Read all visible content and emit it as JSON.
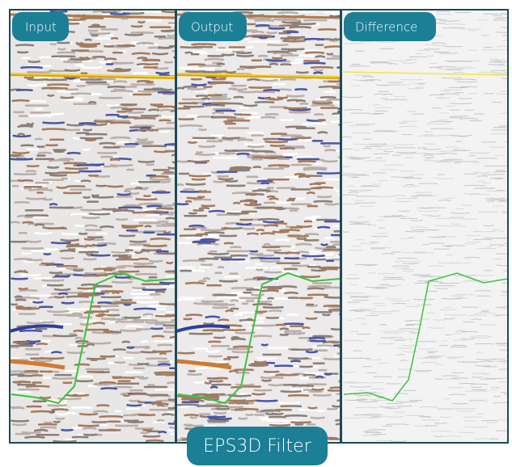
{
  "panels": [
    {
      "label": "Input"
    },
    {
      "label": "Output"
    },
    {
      "label": "Difference"
    }
  ],
  "caption": "EPS3D Filter"
}
